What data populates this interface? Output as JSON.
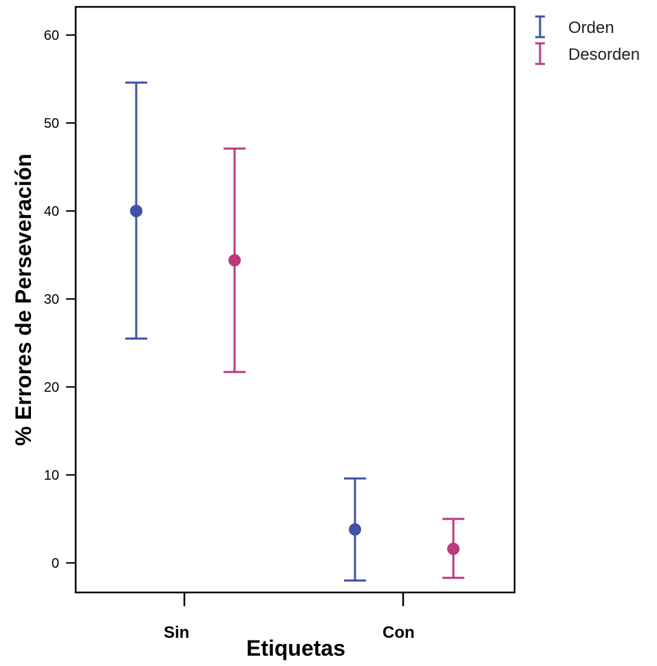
{
  "chart_data": {
    "type": "errorbar",
    "title": "",
    "xlabel": "Etiquetas",
    "ylabel": "% Errores de Perseveración",
    "categories": [
      "Sin",
      "Con"
    ],
    "ylim": [
      -3.3,
      63.5
    ],
    "yticks": [
      0,
      10,
      20,
      30,
      40,
      50,
      60
    ],
    "grid": false,
    "legend_position": "top-right, outside plot",
    "series": [
      {
        "name": "Orden",
        "color": "#3F51A8",
        "points": [
          {
            "category": "Sin",
            "mean": 40.0,
            "lower": 25.5,
            "upper": 54.6
          },
          {
            "category": "Con",
            "mean": 3.8,
            "lower": -2.0,
            "upper": 9.6
          }
        ]
      },
      {
        "name": "Desorden",
        "color": "#BC3A7D",
        "points": [
          {
            "category": "Sin",
            "mean": 34.4,
            "lower": 21.7,
            "upper": 47.1
          },
          {
            "category": "Con",
            "mean": 1.6,
            "lower": -1.7,
            "upper": 5.0
          }
        ]
      }
    ]
  }
}
